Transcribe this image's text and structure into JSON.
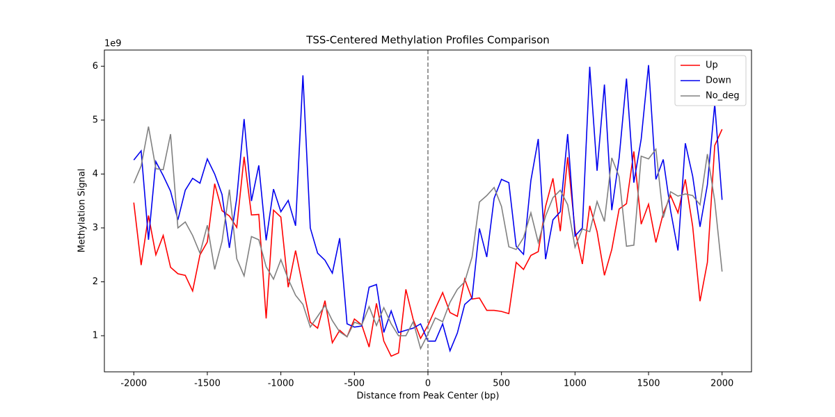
{
  "chart_data": {
    "type": "line",
    "title": "TSS-Centered Methylation Profiles Comparison",
    "xlabel": "Distance from Peak Center (bp)",
    "ylabel": "Methylation Signal",
    "y_offset_label": "1e9",
    "x": [
      -2000,
      -1950,
      -1900,
      -1850,
      -1800,
      -1750,
      -1700,
      -1650,
      -1600,
      -1550,
      -1500,
      -1450,
      -1400,
      -1350,
      -1300,
      -1250,
      -1200,
      -1150,
      -1100,
      -1050,
      -1000,
      -950,
      -900,
      -850,
      -800,
      -750,
      -700,
      -650,
      -600,
      -550,
      -500,
      -450,
      -400,
      -350,
      -300,
      -250,
      -200,
      -150,
      -100,
      -50,
      0,
      50,
      100,
      150,
      200,
      250,
      300,
      350,
      400,
      450,
      500,
      550,
      600,
      650,
      700,
      750,
      800,
      850,
      900,
      950,
      1000,
      1050,
      1100,
      1150,
      1200,
      1250,
      1300,
      1350,
      1400,
      1450,
      1500,
      1550,
      1600,
      1650,
      1700,
      1750,
      1800,
      1850,
      1900,
      1950,
      2000
    ],
    "series": [
      {
        "name": "Up",
        "color": "#ff0000",
        "values": [
          3.47,
          2.31,
          3.23,
          2.5,
          2.86,
          2.27,
          2.15,
          2.12,
          1.83,
          2.5,
          2.74,
          3.82,
          3.32,
          3.22,
          3.01,
          4.32,
          3.24,
          3.25,
          1.32,
          3.33,
          3.2,
          1.9,
          2.58,
          1.9,
          1.25,
          1.14,
          1.65,
          0.87,
          1.1,
          0.98,
          1.31,
          1.2,
          0.79,
          1.6,
          0.9,
          0.62,
          0.68,
          1.86,
          1.3,
          0.95,
          1.19,
          1.5,
          1.8,
          1.43,
          1.36,
          2.05,
          1.68,
          1.7,
          1.47,
          1.47,
          1.45,
          1.41,
          2.36,
          2.23,
          2.49,
          2.56,
          3.4,
          3.92,
          2.94,
          4.31,
          2.96,
          2.33,
          3.41,
          2.93,
          2.12,
          2.6,
          3.35,
          3.45,
          4.42,
          3.07,
          3.44,
          2.73,
          3.27,
          3.6,
          3.28,
          3.9,
          3.03,
          1.64,
          2.36,
          4.53,
          4.83
        ]
      },
      {
        "name": "Down",
        "color": "#0000ee",
        "values": [
          4.26,
          4.43,
          2.78,
          4.23,
          3.97,
          3.68,
          3.15,
          3.7,
          3.92,
          3.83,
          4.28,
          4.0,
          3.62,
          2.63,
          3.55,
          5.02,
          3.5,
          4.16,
          2.77,
          3.72,
          3.3,
          3.51,
          3.04,
          5.83,
          3.0,
          2.53,
          2.4,
          2.16,
          2.81,
          1.22,
          1.16,
          1.18,
          1.9,
          1.95,
          1.06,
          1.46,
          1.06,
          1.1,
          1.14,
          1.22,
          0.9,
          0.9,
          1.22,
          0.72,
          1.05,
          1.58,
          1.7,
          2.99,
          2.46,
          3.55,
          3.9,
          3.84,
          2.66,
          2.51,
          3.88,
          4.65,
          2.42,
          3.15,
          3.3,
          4.74,
          2.85,
          3.0,
          5.99,
          4.06,
          5.66,
          3.33,
          4.3,
          5.77,
          3.84,
          4.65,
          6.02,
          3.9,
          4.27,
          3.32,
          2.58,
          4.57,
          3.96,
          3.02,
          3.8,
          5.3,
          3.52
        ]
      },
      {
        "name": "No_deg",
        "color": "#808080",
        "values": [
          3.83,
          4.15,
          4.88,
          4.1,
          4.08,
          4.74,
          3.0,
          3.11,
          2.86,
          2.53,
          3.05,
          2.23,
          2.75,
          3.71,
          2.43,
          2.11,
          2.84,
          2.78,
          2.28,
          2.05,
          2.41,
          2.05,
          1.75,
          1.58,
          1.16,
          1.36,
          1.56,
          1.28,
          1.07,
          0.98,
          1.25,
          1.2,
          1.54,
          1.19,
          1.52,
          1.22,
          1.0,
          1.0,
          1.26,
          0.76,
          1.03,
          1.33,
          1.26,
          1.62,
          1.86,
          2.0,
          2.46,
          3.48,
          3.6,
          3.75,
          3.4,
          2.65,
          2.6,
          2.82,
          3.28,
          2.73,
          3.22,
          3.56,
          3.7,
          3.43,
          2.64,
          2.98,
          2.93,
          3.49,
          3.12,
          4.3,
          3.95,
          2.66,
          2.68,
          4.33,
          4.28,
          4.46,
          3.19,
          3.67,
          3.59,
          3.63,
          3.6,
          3.43,
          4.37,
          3.5,
          2.19
        ]
      }
    ],
    "vline": 0,
    "xlim": [
      -2200,
      2200
    ],
    "ylim": [
      0.33,
      6.3
    ],
    "xticks": [
      -2000,
      -1500,
      -1000,
      -500,
      0,
      500,
      1000,
      1500,
      2000
    ],
    "yticks": [
      1,
      2,
      3,
      4,
      5,
      6
    ],
    "legend": "upper right"
  }
}
